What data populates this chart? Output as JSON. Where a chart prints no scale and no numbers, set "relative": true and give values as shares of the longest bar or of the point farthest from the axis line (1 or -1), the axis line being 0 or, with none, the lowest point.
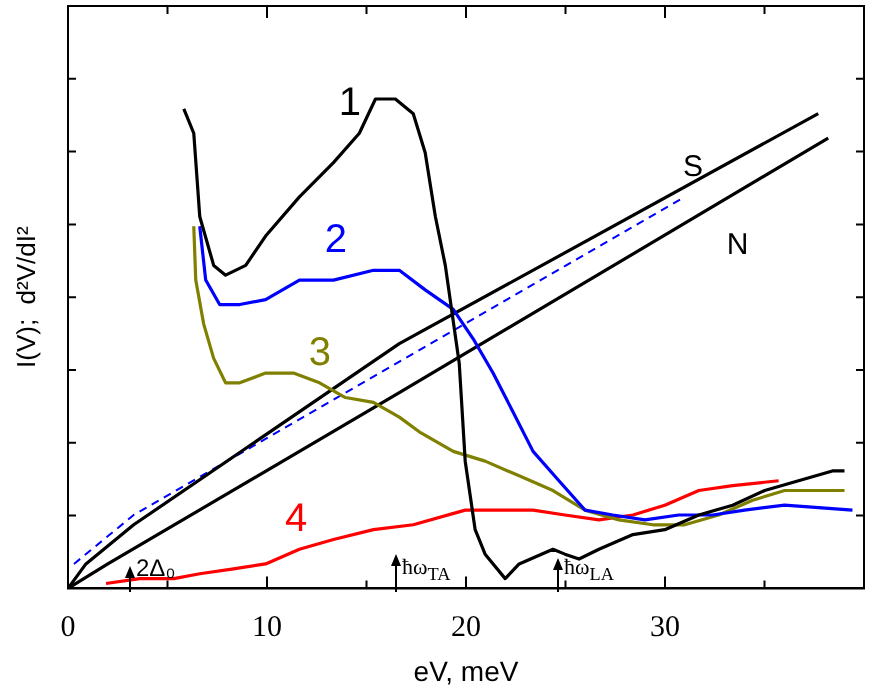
{
  "chart_data": {
    "type": "line",
    "relative": true,
    "xlabel": "eV, meV",
    "ylabel": "I(V);  d²V/dI²",
    "xlim": [
      0,
      40
    ],
    "xticks": [
      0,
      {
        "value": 5,
        "label": null
      },
      10,
      {
        "value": 15,
        "label": null
      },
      20,
      {
        "value": 25,
        "label": null
      },
      30,
      {
        "value": 35,
        "label": null
      }
    ],
    "marker": "none",
    "line_style": "solid",
    "series": [
      {
        "name": "1",
        "color": "#000000",
        "x": [
          5.82,
          6.32,
          6.62,
          7.32,
          7.92,
          8.93,
          9.93,
          11.63,
          13.34,
          14.64,
          15.45,
          16.45,
          17.35,
          17.95,
          18.46,
          18.96,
          19.66,
          19.96,
          20.46,
          20.96,
          21.97,
          22.67,
          24.37,
          24.97,
          25.68,
          26.68,
          28.39,
          29.99,
          31.7,
          33.4,
          35.01,
          36.71,
          38.41,
          39.02
        ],
        "values": [
          0.98,
          0.93,
          0.76,
          0.66,
          0.64,
          0.66,
          0.72,
          0.8,
          0.87,
          0.93,
          1,
          1,
          0.97,
          0.89,
          0.76,
          0.66,
          0.46,
          0.26,
          0.12,
          0.07,
          0.02,
          0.05,
          0.08,
          0.07,
          0.06,
          0.08,
          0.11,
          0.12,
          0.15,
          0.17,
          0.2,
          0.22,
          0.24,
          0.24
        ]
      },
      {
        "name": "2",
        "color": "#0000ff",
        "x": [
          6.62,
          6.92,
          7.62,
          8.63,
          9.93,
          11.63,
          13.34,
          15.35,
          16.65,
          17.95,
          19.36,
          20.36,
          21.36,
          22.37,
          23.37,
          24.67,
          25.98,
          27.38,
          28.99,
          30.69,
          32.4,
          34,
          36.01,
          39.42
        ],
        "values": [
          0.74,
          0.63,
          0.58,
          0.58,
          0.59,
          0.63,
          0.63,
          0.65,
          0.65,
          0.61,
          0.57,
          0.51,
          0.44,
          0.36,
          0.28,
          0.22,
          0.16,
          0.15,
          0.14,
          0.15,
          0.15,
          0.16,
          0.17,
          0.16
        ]
      },
      {
        "name": "3",
        "color": "#808000",
        "x": [
          6.32,
          6.42,
          6.82,
          7.32,
          7.92,
          8.63,
          9.93,
          11.33,
          12.64,
          13.94,
          15.35,
          16.65,
          17.65,
          19.36,
          20.96,
          22.67,
          24.37,
          25.98,
          27.68,
          29.39,
          30.99,
          32.7,
          34.4,
          36.01,
          39.02
        ],
        "values": [
          0.74,
          0.63,
          0.54,
          0.47,
          0.42,
          0.42,
          0.44,
          0.44,
          0.42,
          0.39,
          0.38,
          0.35,
          0.32,
          0.28,
          0.26,
          0.23,
          0.2,
          0.16,
          0.14,
          0.13,
          0.13,
          0.15,
          0.18,
          0.2,
          0.2
        ]
      },
      {
        "name": "4",
        "color": "#ff0000",
        "x": [
          1.91,
          3.61,
          5.32,
          6.62,
          8.32,
          9.93,
          11.63,
          13.34,
          15.35,
          17.35,
          19.96,
          21.67,
          23.37,
          24.97,
          26.68,
          28.39,
          29.99,
          31.7,
          33.4,
          35.71
        ],
        "values": [
          0.01,
          0.02,
          0.02,
          0.03,
          0.04,
          0.05,
          0.08,
          0.1,
          0.12,
          0.13,
          0.16,
          0.16,
          0.16,
          0.15,
          0.14,
          0.15,
          0.17,
          0.2,
          0.21,
          0.22
        ]
      },
      {
        "name": "S",
        "color": "#000000",
        "x": [
          0,
          0.9,
          3.3,
          16.65,
          37.7
        ],
        "values": [
          0,
          0.05,
          0.13,
          0.5,
          0.97
        ]
      },
      {
        "name": "N",
        "color": "#000000",
        "x": [
          0,
          2,
          16.65,
          38.2
        ],
        "values": [
          0,
          0.05,
          0.4,
          0.92
        ]
      },
      {
        "color": "#0000ff",
        "line_style": "dashed",
        "x": [
          0.3,
          3.3,
          31
        ],
        "values": [
          0.05,
          0.15,
          0.8
        ]
      }
    ],
    "annotations": [
      "2Δ₀",
      "ħω$_{TA}$",
      "ħω$_{LA}$"
    ]
  }
}
